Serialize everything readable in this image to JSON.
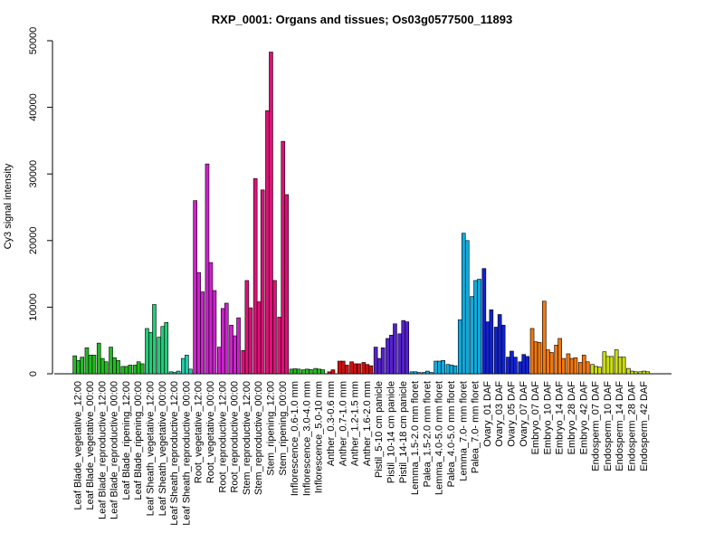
{
  "chart_data": {
    "type": "bar",
    "title": "RXP_0001: Organs and tissues; Os03g0577500_11893",
    "ylabel": "Cy3 signal intensity",
    "xlabel": "",
    "ylim": [
      0,
      50000
    ],
    "yticks": [
      0,
      10000,
      20000,
      30000,
      40000,
      50000
    ],
    "ytick_labels": [
      "0",
      "10000",
      "20000",
      "30000",
      "40000",
      "50000"
    ],
    "grid": false,
    "legend": "none",
    "x_tick_labels": [
      "Leaf Blade_vegetative_12:00",
      "Leaf Blade_vegetative_00:00",
      "Leaf Blade_reproductive_12:00",
      "Leaf Blade_reproductive_00:00",
      "Leaf Blade_ripening_12:00",
      "Leaf Blade_ripening_00:00",
      "Leaf Sheath_vegetative_12:00",
      "Leaf Sheath_vegetative_00:00",
      "Leaf Sheath_reproductive_12:00",
      "Leaf Sheath_reproductive_00:00",
      "Root_vegetative_12:00",
      "Root_vegetative_00:00",
      "Root_reproductive_12:00",
      "Root_reproductive_00:00",
      "Stem_reproductive_12:00",
      "Stem_reproductive_00:00",
      "Stem_ripening_12:00",
      "Stem_ripening_00:00",
      "Inflorescence_0.6-1.0 mm",
      "Inflorescence_3.0-4.0 mm",
      "Inflorescence_5.0-10 mm",
      "Anther_0.3-0.6 mm",
      "Anther_0.7-1.0 mm",
      "Anther_1.2-1.5 mm",
      "Anther_1.6-2.0 mm",
      "Pistil_5-10 cm panicle",
      "Pistil_10-14 cm panicle",
      "Pistil_14-18 cm panicle",
      "Lemma_1.5-2.0 mm floret",
      "Palea_1.5-2.0 mm floret",
      "Lemma_4.0-5.0 mm floret",
      "Palea_4.0-5.0 mm floret",
      "Lemma_7.0- mm floret",
      "Palea_7.0- mm floret",
      "Ovary_01 DAF",
      "Ovary_03 DAF",
      "Ovary_05 DAF",
      "Ovary_07 DAF",
      "Embryo_07 DAF",
      "Embryo_10 DAF",
      "Embryo_14 DAF",
      "Embryo_28 DAF",
      "Embryo_42 DAF",
      "Endosperm_07 DAF",
      "Endosperm_10 DAF",
      "Endosperm_14 DAF",
      "Endosperm_28 DAF",
      "Endosperm_42 DAF"
    ],
    "groups": [
      {
        "color": "#22bb22",
        "values": [
          2700,
          2000,
          2500
        ]
      },
      {
        "color": "#22bb22",
        "values": [
          3900,
          2800,
          2800
        ]
      },
      {
        "color": "#22bb22",
        "values": [
          4600,
          2300,
          1800
        ]
      },
      {
        "color": "#22bb22",
        "values": [
          4000,
          2400,
          2000
        ]
      },
      {
        "color": "#22bb22",
        "values": [
          1100,
          1100,
          1300
        ]
      },
      {
        "color": "#22bb22",
        "values": [
          1300,
          1800,
          1500
        ]
      },
      {
        "color": "#22cc77",
        "values": [
          6800,
          6200,
          10400
        ]
      },
      {
        "color": "#22cc77",
        "values": [
          5500,
          7100,
          7700
        ]
      },
      {
        "color": "#22ccaa",
        "values": [
          300,
          200,
          400
        ]
      },
      {
        "color": "#22ccaa",
        "values": [
          2300,
          2800,
          700
        ]
      },
      {
        "color": "#cc22cc",
        "values": [
          26000,
          15200,
          12300
        ]
      },
      {
        "color": "#cc22cc",
        "values": [
          31500,
          16700,
          12500
        ]
      },
      {
        "color": "#cc22cc",
        "values": [
          4000,
          9800,
          10600
        ]
      },
      {
        "color": "#cc22cc",
        "values": [
          7300,
          5700,
          8400
        ]
      },
      {
        "color": "#dd1177",
        "values": [
          3500,
          14000,
          9900
        ]
      },
      {
        "color": "#dd1177",
        "values": [
          29300,
          10800,
          27600
        ]
      },
      {
        "color": "#dd1177",
        "values": [
          39500,
          48300,
          14000
        ]
      },
      {
        "color": "#dd1177",
        "values": [
          8500,
          34900,
          26900
        ]
      },
      {
        "color": "#22bb22",
        "values": [
          700,
          750,
          700
        ]
      },
      {
        "color": "#22bb22",
        "values": [
          600,
          700,
          650
        ]
      },
      {
        "color": "#22bb22",
        "values": [
          800,
          700,
          600
        ]
      },
      {
        "color": "#cc1111",
        "values": [
          300,
          600
        ]
      },
      {
        "color": "#cc1111",
        "values": [
          1900,
          1900,
          1300
        ]
      },
      {
        "color": "#cc1111",
        "values": [
          1800,
          1500,
          1500
        ]
      },
      {
        "color": "#cc1111",
        "values": [
          1700,
          1400,
          1200
        ]
      },
      {
        "color": "#5522cc",
        "values": [
          4000,
          2300,
          3900
        ]
      },
      {
        "color": "#5522cc",
        "values": [
          5300,
          5800,
          7500
        ]
      },
      {
        "color": "#5522cc",
        "values": [
          6000,
          8000,
          7800
        ]
      },
      {
        "color": "#11aadd",
        "values": [
          300,
          300,
          200
        ]
      },
      {
        "color": "#11aadd",
        "values": [
          200,
          400,
          200
        ]
      },
      {
        "color": "#11aadd",
        "values": [
          1900,
          1900,
          2000
        ]
      },
      {
        "color": "#11aadd",
        "values": [
          1400,
          1300,
          1200
        ]
      },
      {
        "color": "#11aadd",
        "values": [
          8100,
          21100,
          20000
        ]
      },
      {
        "color": "#11aadd",
        "values": [
          11600,
          14000,
          14200
        ]
      },
      {
        "color": "#1122cc",
        "values": [
          15800,
          7800,
          9600
        ]
      },
      {
        "color": "#1122cc",
        "values": [
          7000,
          8900,
          7300
        ]
      },
      {
        "color": "#1122cc",
        "values": [
          2500,
          3400,
          2500
        ]
      },
      {
        "color": "#1122cc",
        "values": [
          1800,
          2900,
          2600
        ]
      },
      {
        "color": "#ee7711",
        "values": [
          6800,
          4800,
          4700
        ]
      },
      {
        "color": "#ee7711",
        "values": [
          10900,
          3600,
          3200
        ]
      },
      {
        "color": "#ee7711",
        "values": [
          4300,
          5300,
          2300
        ]
      },
      {
        "color": "#ee7711",
        "values": [
          3000,
          2300,
          2400
        ]
      },
      {
        "color": "#ee7711",
        "values": [
          1700,
          2800,
          1800
        ]
      },
      {
        "color": "#ccdd11",
        "values": [
          1400,
          1100,
          1000
        ]
      },
      {
        "color": "#ccdd11",
        "values": [
          3300,
          2600,
          2600
        ]
      },
      {
        "color": "#ccdd11",
        "values": [
          3600,
          2500,
          2500
        ]
      },
      {
        "color": "#ccdd11",
        "values": [
          800,
          400,
          300
        ]
      },
      {
        "color": "#ccdd11",
        "values": [
          300,
          400,
          300
        ]
      }
    ]
  }
}
